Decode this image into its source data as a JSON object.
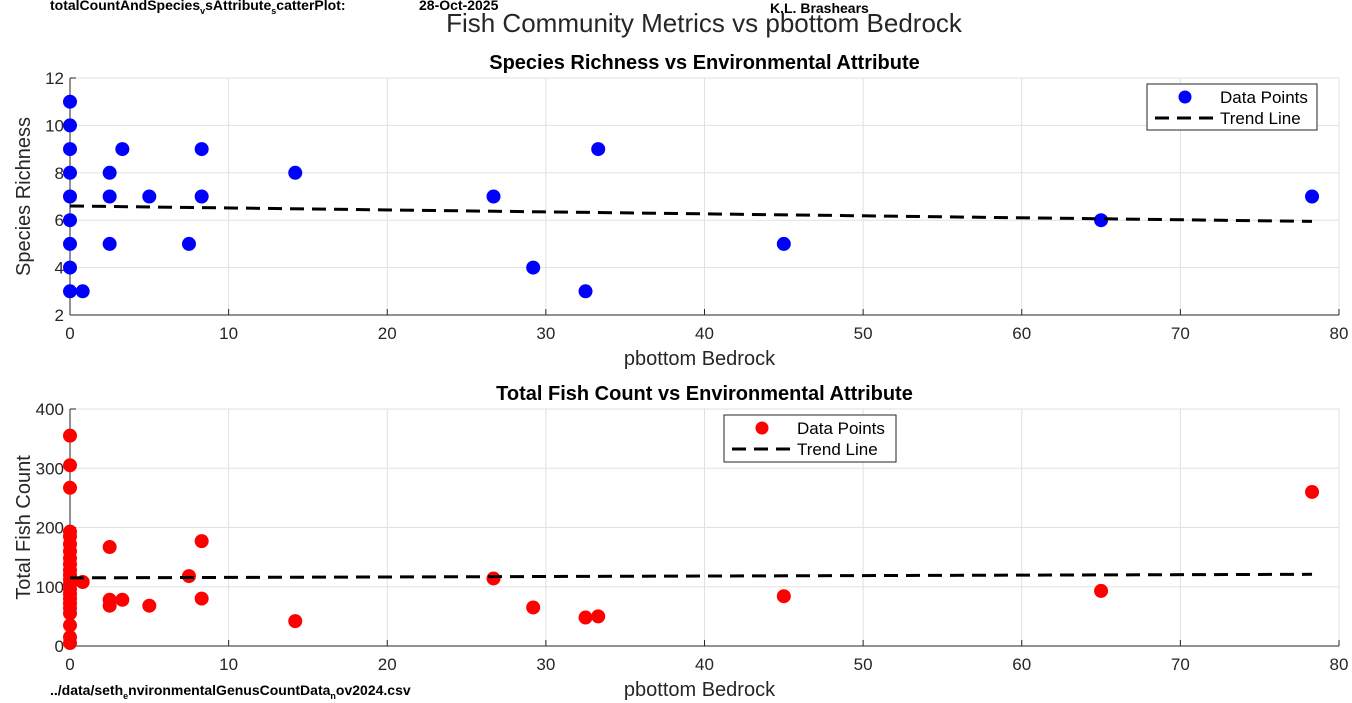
{
  "header": {
    "script_name": "totalCountAndSpecies",
    "script_sub1": "v",
    "script_mid": "sAttribute",
    "script_sub2": "s",
    "script_end": "catterPlot:",
    "date": "28-Oct-2025",
    "author": "K.L. Brashears"
  },
  "footer": {
    "file_a": "../data/seth",
    "file_sub1": "e",
    "file_b": "nvironmentalGenusCountData",
    "file_sub2": "n",
    "file_c": "ov2024.csv"
  },
  "figure_title": "Fish Community Metrics vs pbottom Bedrock",
  "chart_data": [
    {
      "type": "scatter",
      "title": "Species Richness vs Environmental Attribute",
      "xlabel": "pbottom Bedrock",
      "ylabel": "Species Richness",
      "xlim": [
        0,
        80
      ],
      "ylim": [
        2,
        12
      ],
      "xticks": [
        0,
        10,
        20,
        30,
        40,
        50,
        60,
        70,
        80
      ],
      "yticks": [
        2,
        4,
        6,
        8,
        10,
        12
      ],
      "grid": true,
      "legend_position": "top-right",
      "series": [
        {
          "name": "Data Points",
          "color": "#0000ff",
          "points": [
            [
              0,
              11
            ],
            [
              0,
              10
            ],
            [
              0,
              9
            ],
            [
              0,
              8
            ],
            [
              0,
              7
            ],
            [
              0,
              6
            ],
            [
              0,
              5
            ],
            [
              0,
              4
            ],
            [
              0,
              3
            ],
            [
              0.8,
              3
            ],
            [
              2.5,
              8
            ],
            [
              2.5,
              7
            ],
            [
              2.5,
              5
            ],
            [
              3.3,
              9
            ],
            [
              5,
              7
            ],
            [
              7.5,
              5
            ],
            [
              8.3,
              9
            ],
            [
              8.3,
              7
            ],
            [
              14.2,
              8
            ],
            [
              26.7,
              7
            ],
            [
              29.2,
              4
            ],
            [
              32.5,
              3
            ],
            [
              33.3,
              9
            ],
            [
              45,
              5
            ],
            [
              65,
              6
            ],
            [
              78.3,
              7
            ]
          ]
        },
        {
          "name": "Trend Line",
          "color": "#000000",
          "line": [
            [
              0,
              6.6
            ],
            [
              78.3,
              5.95
            ]
          ]
        }
      ]
    },
    {
      "type": "scatter",
      "title": "Total Fish Count vs Environmental Attribute",
      "xlabel": "pbottom Bedrock",
      "ylabel": "Total Fish Count",
      "xlim": [
        0,
        80
      ],
      "ylim": [
        0,
        400
      ],
      "xticks": [
        0,
        10,
        20,
        30,
        40,
        50,
        60,
        70,
        80
      ],
      "yticks": [
        0,
        100,
        200,
        300,
        400
      ],
      "grid": true,
      "legend_position": "top-center",
      "series": [
        {
          "name": "Data Points",
          "color": "#ff0000",
          "points": [
            [
              0,
              355
            ],
            [
              0,
              305
            ],
            [
              0,
              267
            ],
            [
              0,
              193
            ],
            [
              0,
              185
            ],
            [
              0,
              172
            ],
            [
              0,
              160
            ],
            [
              0,
              148
            ],
            [
              0,
              138
            ],
            [
              0,
              128
            ],
            [
              0,
              120
            ],
            [
              0,
              112
            ],
            [
              0,
              104
            ],
            [
              0,
              96
            ],
            [
              0,
              88
            ],
            [
              0,
              80
            ],
            [
              0,
              72
            ],
            [
              0,
              64
            ],
            [
              0,
              55
            ],
            [
              0,
              35
            ],
            [
              0,
              15
            ],
            [
              0,
              5
            ],
            [
              0.8,
              108
            ],
            [
              2.5,
              167
            ],
            [
              2.5,
              78
            ],
            [
              2.5,
              68
            ],
            [
              3.3,
              78
            ],
            [
              5,
              68
            ],
            [
              7.5,
              118
            ],
            [
              8.3,
              177
            ],
            [
              8.3,
              80
            ],
            [
              14.2,
              42
            ],
            [
              26.7,
              114
            ],
            [
              29.2,
              65
            ],
            [
              32.5,
              48
            ],
            [
              33.3,
              50
            ],
            [
              45,
              84
            ],
            [
              65,
              93
            ],
            [
              78.3,
              260
            ]
          ]
        },
        {
          "name": "Trend Line",
          "color": "#000000",
          "line": [
            [
              0,
              115
            ],
            [
              78.3,
              121
            ]
          ]
        }
      ]
    }
  ]
}
